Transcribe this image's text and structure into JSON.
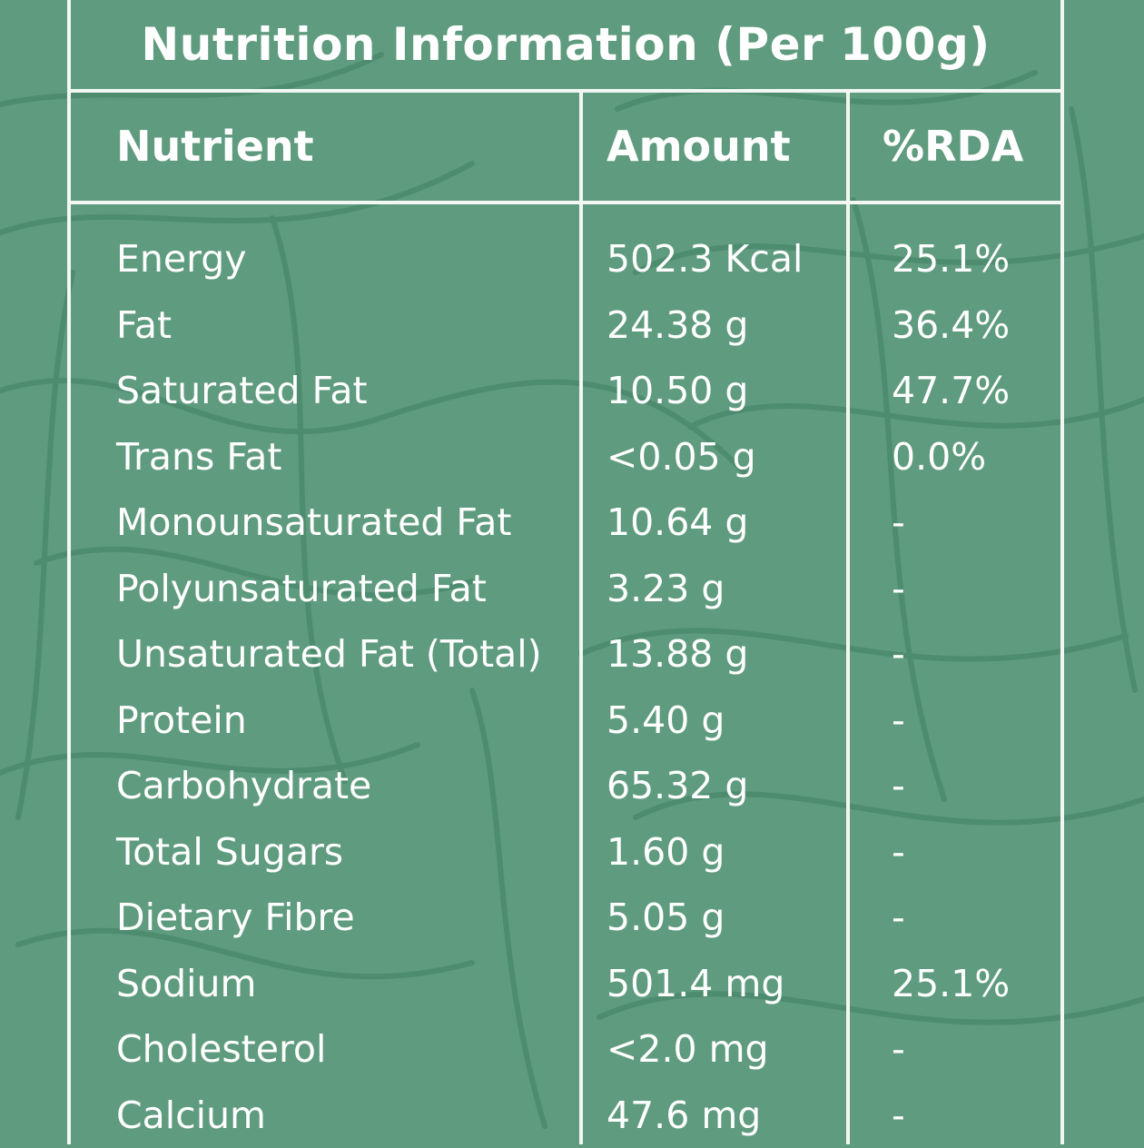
{
  "title": "Nutrition Information (Per 100g)",
  "headers": {
    "nutrient": "Nutrient",
    "amount": "Amount",
    "rda": "%RDA"
  },
  "rows": [
    {
      "nutrient": "Energy",
      "amount": "502.3 Kcal",
      "rda": "25.1%"
    },
    {
      "nutrient": "Fat",
      "amount": "24.38 g",
      "rda": "36.4%"
    },
    {
      "nutrient": "Saturated Fat",
      "amount": "10.50 g",
      "rda": "47.7%"
    },
    {
      "nutrient": "Trans Fat",
      "amount": "<0.05 g",
      "rda": "0.0%"
    },
    {
      "nutrient": "Monounsaturated Fat",
      "amount": "10.64 g",
      "rda": "-"
    },
    {
      "nutrient": "Polyunsaturated Fat",
      "amount": "3.23 g",
      "rda": "-"
    },
    {
      "nutrient": "Unsaturated Fat (Total)",
      "amount": "13.88 g",
      "rda": "-"
    },
    {
      "nutrient": "Protein",
      "amount": "5.40 g",
      "rda": "-"
    },
    {
      "nutrient": "Carbohydrate",
      "amount": "65.32 g",
      "rda": "-"
    },
    {
      "nutrient": "Total Sugars",
      "amount": "1.60 g",
      "rda": "-"
    },
    {
      "nutrient": "Dietary Fibre",
      "amount": "5.05 g",
      "rda": "-"
    },
    {
      "nutrient": "Sodium",
      "amount": "501.4 mg",
      "rda": "25.1%"
    },
    {
      "nutrient": "Cholesterol",
      "amount": "<2.0 mg",
      "rda": "-"
    },
    {
      "nutrient": "Calcium",
      "amount": "47.6 mg",
      "rda": "-"
    }
  ],
  "colors": {
    "background": "#5f9b7e",
    "pattern_line": "#4a8a6c",
    "text": "#ffffff",
    "rule": "#f2f7f4"
  }
}
